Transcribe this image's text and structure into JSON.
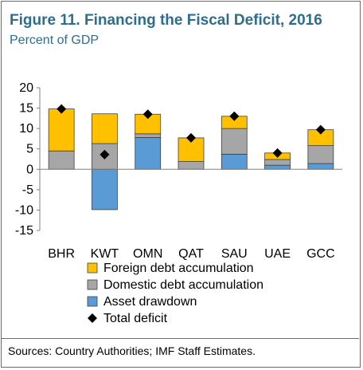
{
  "title": "Figure 11. Financing the Fiscal Deficit, 2016",
  "subtitle": "Percent of GDP",
  "source": "Sources: Country Authorities; IMF Staff Estimates.",
  "colors": {
    "foreign": "#ffc000",
    "domestic": "#a6a6a6",
    "asset": "#5b9bd5",
    "total": "#000000",
    "title": "#2e6d8e"
  },
  "chart_data": {
    "type": "bar",
    "stacked": true,
    "categories": [
      "BHR",
      "KWT",
      "OMN",
      "QAT",
      "SAU",
      "UAE",
      "GCC"
    ],
    "ylim": [
      -15,
      20
    ],
    "yticks": [
      20,
      15,
      10,
      5,
      0,
      -5,
      -10,
      -15
    ],
    "ytick_labels": [
      "20",
      "15",
      "10",
      "5",
      "0",
      "-5",
      "-10",
      "-15"
    ],
    "grid": false,
    "legend_position": "bottom",
    "series": [
      {
        "name": "Foreign debt accumulation",
        "key": "foreign",
        "values": [
          10.3,
          7.3,
          4.8,
          5.8,
          3.0,
          1.6,
          3.9
        ]
      },
      {
        "name": "Domestic debt accumulation",
        "key": "domestic",
        "values": [
          4.5,
          6.3,
          0.9,
          1.9,
          6.3,
          1.4,
          4.4
        ]
      },
      {
        "name": "Asset drawdown",
        "key": "asset",
        "values": [
          0.0,
          -9.9,
          7.8,
          0.0,
          3.7,
          1.0,
          1.4
        ]
      }
    ],
    "total_deficit": {
      "name": "Total deficit",
      "values": [
        14.8,
        3.6,
        13.5,
        7.7,
        13.0,
        4.0,
        9.7
      ]
    }
  }
}
